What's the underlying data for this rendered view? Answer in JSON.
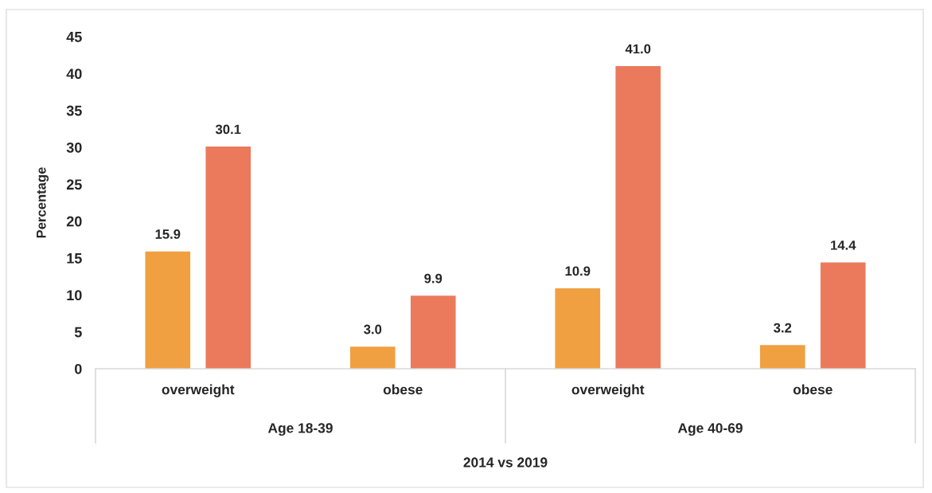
{
  "chart_data": {
    "type": "bar",
    "categories": [
      "overweight",
      "obese",
      "overweight",
      "obese"
    ],
    "series": [
      {
        "color": "#f0a041",
        "values": [
          15.9,
          3.0,
          10.9,
          3.2
        ],
        "value_labels": [
          "15.9",
          "3.0",
          "10.9",
          "3.2"
        ]
      },
      {
        "color": "#eb7a5c",
        "values": [
          30.1,
          9.9,
          41.0,
          14.4
        ],
        "value_labels": [
          "30.1",
          "9.9",
          "41.0",
          "14.4"
        ]
      }
    ],
    "ylabel": "Percentage",
    "xlabel": "2014 vs 2019",
    "annotations": [
      "Age 18-39",
      "Age 40-69"
    ],
    "ylim": [
      0,
      45
    ],
    "yticks": [
      0,
      5,
      10,
      15,
      20,
      25,
      30,
      35,
      40,
      45
    ],
    "grid": false
  }
}
